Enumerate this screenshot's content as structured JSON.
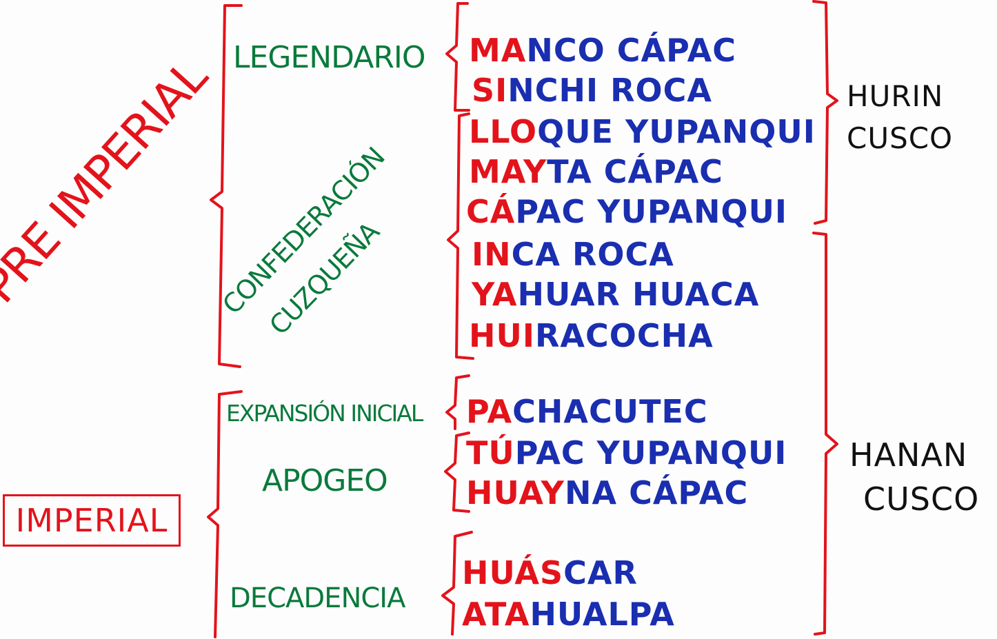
{
  "colors": {
    "red": "#e3131b",
    "green": "#0a7a3c",
    "blue": "#1a2eb0",
    "black": "#111111"
  },
  "periods": {
    "pre_imperial": "PRE IMPERIAL",
    "imperial": "IMPERIAL"
  },
  "stages": {
    "legendario": "LEGENDARIO",
    "confederacion_line1": "CONFEDERACIÓN",
    "confederacion_line2": "CUZQUEÑA",
    "expansion": "EXPANSIÓN INICIAL",
    "apogeo": "APOGEO",
    "decadencia": "DECADENCIA"
  },
  "incas": [
    {
      "hl": "MA",
      "rest": "NCO CÁPAC"
    },
    {
      "hl": "SI",
      "rest": "NCHI ROCA"
    },
    {
      "hl": "LLO",
      "rest": "QUE YUPANQUI"
    },
    {
      "hl": "MAY",
      "rest": "TA CÁPAC"
    },
    {
      "hl": "CÁ",
      "rest": "PAC YUPANQUI"
    },
    {
      "hl": "IN",
      "rest": "CA ROCA"
    },
    {
      "hl": "YA",
      "rest": "HUAR HUACA"
    },
    {
      "hl": "HUI",
      "rest": "RACOCHA"
    },
    {
      "hl": "PA",
      "rest": "CHACUTEC"
    },
    {
      "hl": "TÚ",
      "rest": "PAC YUPANQUI"
    },
    {
      "hl": "HUAY",
      "rest": "NA CÁPAC"
    },
    {
      "hl": "HUÁS",
      "rest": "CAR"
    },
    {
      "hl": "ATA",
      "rest": "HUALPA"
    }
  ],
  "dynasties": {
    "hurin_line1": "HURIN",
    "hurin_line2": "CUSCO",
    "hanan_line1": "HANAN",
    "hanan_line2": "CUSCO"
  }
}
